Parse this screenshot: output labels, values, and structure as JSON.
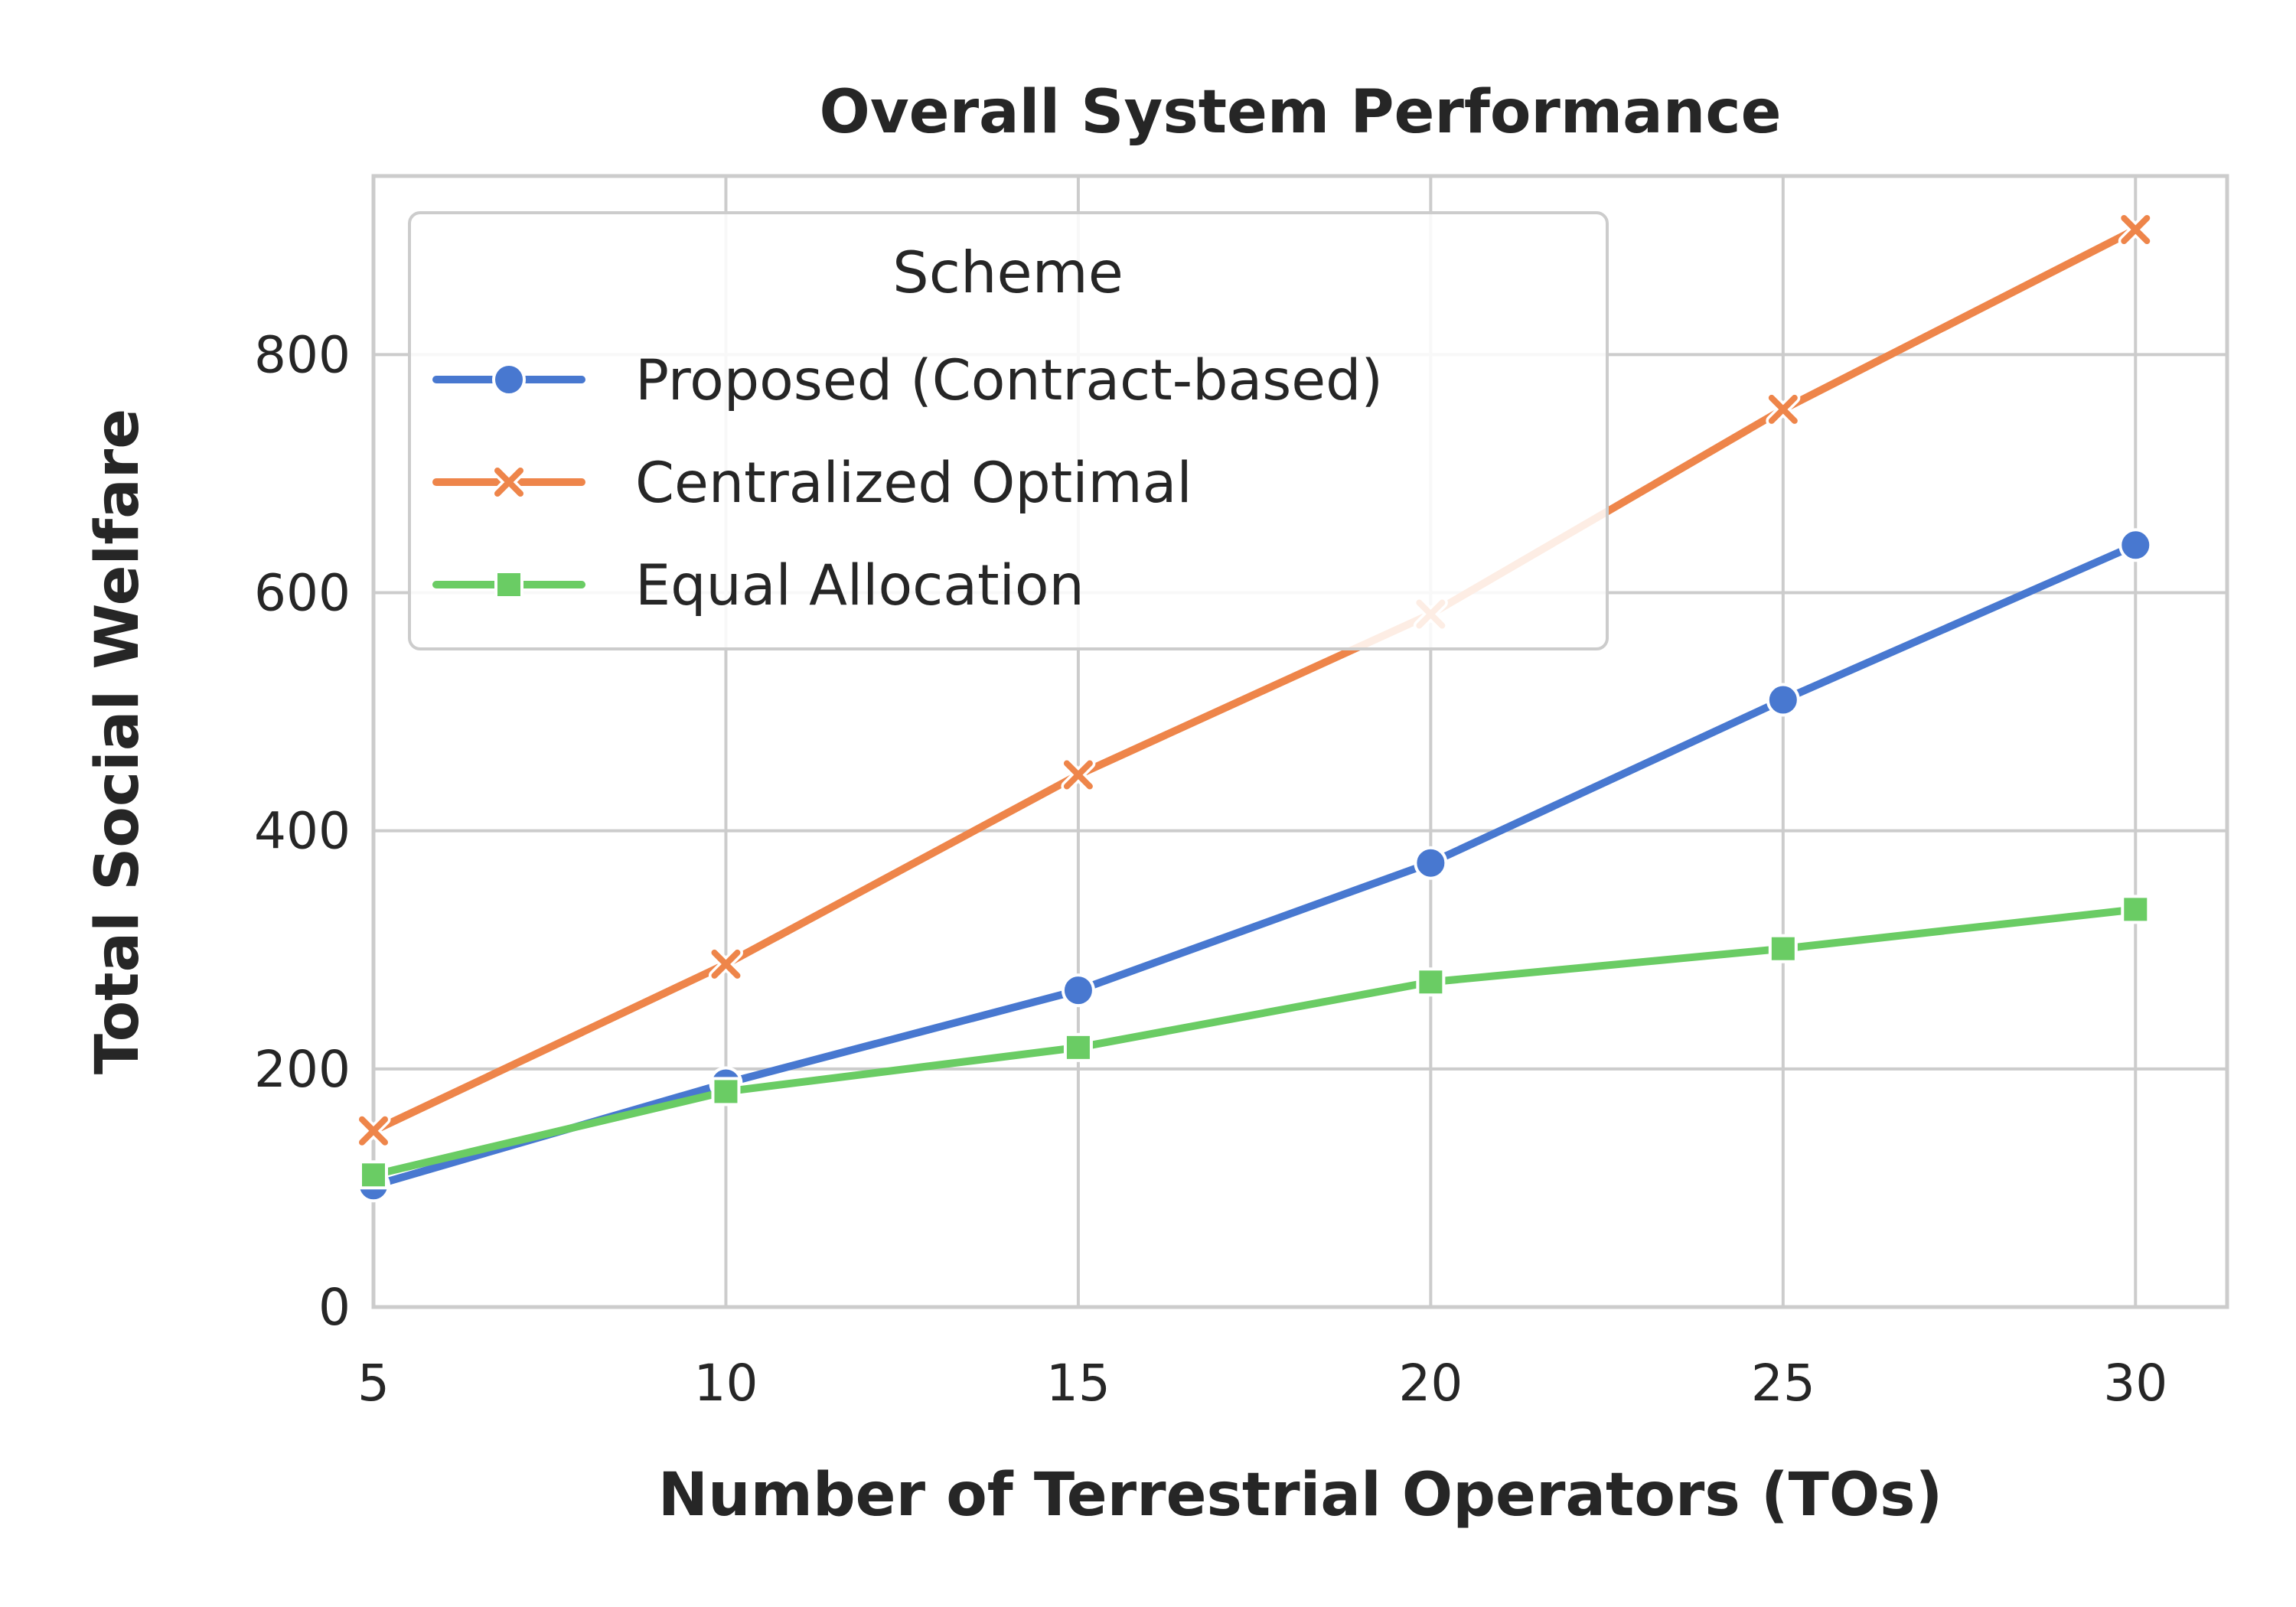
{
  "chart_data": {
    "type": "line",
    "title": "Overall System Performance",
    "xlabel": "Number of Terrestrial Operators (TOs)",
    "ylabel": "Total Social Welfare",
    "x": [
      5,
      10,
      15,
      20,
      25,
      30
    ],
    "xlim": [
      5,
      31.3
    ],
    "ylim": [
      0,
      950
    ],
    "xticks": [
      5,
      10,
      15,
      20,
      25,
      30
    ],
    "yticks": [
      0,
      200,
      400,
      600,
      800
    ],
    "grid": true,
    "legend": {
      "title": "Scheme",
      "placement": "upper-left"
    },
    "series": [
      {
        "name": "Proposed (Contract-based)",
        "marker": "circle",
        "color": "#4878d0",
        "values": [
          102,
          188,
          266,
          373,
          510,
          640
        ]
      },
      {
        "name": "Centralized Optimal",
        "marker": "x",
        "color": "#ee854a",
        "values": [
          148,
          288,
          447,
          582,
          754,
          905
        ]
      },
      {
        "name": "Equal Allocation",
        "marker": "square",
        "color": "#6acc64",
        "values": [
          111,
          181,
          218,
          273,
          301,
          334
        ]
      }
    ]
  }
}
